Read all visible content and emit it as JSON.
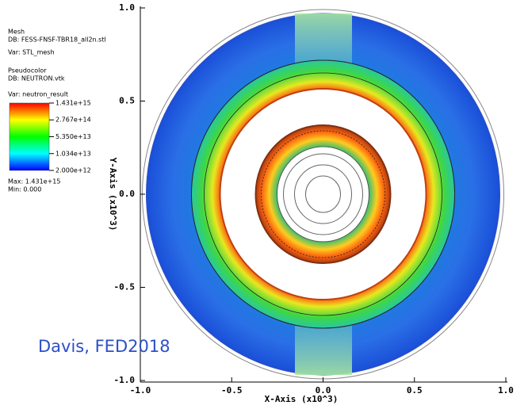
{
  "chart_data": {
    "type": "pseudocolor",
    "x_label": "X-Axis (x10^3)",
    "y_label": "Y-Axis (x10^3)",
    "xlim": [
      -1,
      1
    ],
    "ylim": [
      -1,
      1
    ],
    "xticks": [
      {
        "value": -1,
        "label": "-1.0"
      },
      -0.5,
      {
        "value": 0,
        "label": "0.0"
      },
      0.5,
      {
        "value": 1,
        "label": "1.0"
      }
    ],
    "yticks": [
      {
        "value": -1,
        "label": "-1.0"
      },
      -0.5,
      {
        "value": 0,
        "label": "0.0"
      },
      0.5,
      {
        "value": 1,
        "label": "1.0"
      }
    ],
    "legend": {
      "mesh_title": "Mesh",
      "mesh_db": "DB: FESS-FNSF-TBR18_all2n.stl",
      "mesh_var": "Var: STL_mesh",
      "pc_title": "Pseudocolor",
      "pc_db": "DB: NEUTRON.vtk",
      "pc_var": "Var: neutron_result",
      "max_label": "Max: 1.431e+15",
      "min_label": "Min: 0.000"
    },
    "colorbar": {
      "log_scale": true,
      "clim": [
        2000000000000.0,
        1431000000000000.0
      ],
      "colors": [
        "#0000ff",
        "#00ffff",
        "#00ff00",
        "#ffff00",
        "#ff0000"
      ],
      "ticks": [
        {
          "value": 1431000000000000.0,
          "label": "1.431e+15"
        },
        {
          "value": 276700000000000.0,
          "label": "2.767e+14"
        },
        {
          "value": 53500000000000.0,
          "label": "5.350e+13"
        },
        {
          "value": 10340000000000.0,
          "label": "1.034e+13"
        },
        {
          "value": 2000000000000.0,
          "label": "2.000e+12"
        }
      ]
    },
    "annotation": "Davis, FED2018"
  }
}
